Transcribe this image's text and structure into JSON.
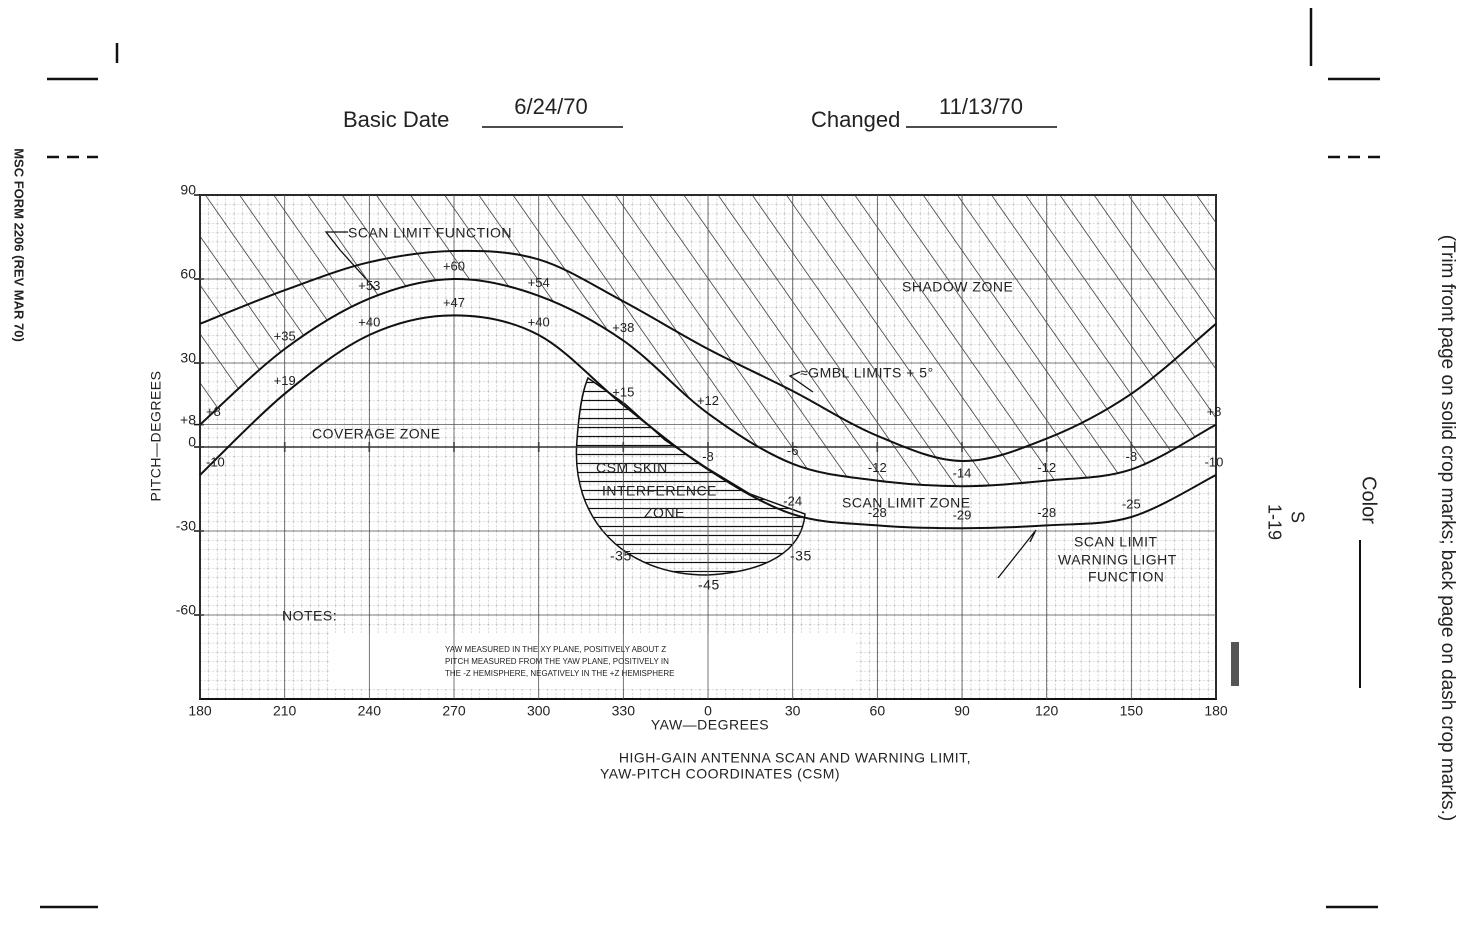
{
  "header": {
    "basic_date_label": "Basic Date",
    "basic_date": "6/24/70",
    "changed_label": "Changed",
    "changed": "11/13/70"
  },
  "margin": {
    "form": "MSC FORM 2206 (REV MAR 70)",
    "trim_note": "(Trim front page on solid crop marks; back page on dash crop marks.)",
    "color_label": "Color",
    "page_number": [
      "S",
      "1-19"
    ]
  },
  "chart_data": {
    "type": "line",
    "title": [
      "HIGH-GAIN ANTENNA SCAN AND WARNING LIMIT,",
      "YAW-PITCH COORDINATES (CSM)"
    ],
    "xlabel": "YAW—DEGREES",
    "ylabel": "PITCH—DEGREES",
    "x": [
      180,
      210,
      240,
      270,
      300,
      330,
      360,
      390,
      420,
      450,
      480,
      510,
      540
    ],
    "xlim": [
      180,
      540
    ],
    "xticks": [
      180,
      210,
      240,
      270,
      300,
      330,
      {
        "value": 360,
        "label": "0"
      },
      {
        "value": 390,
        "label": "30"
      },
      {
        "value": 420,
        "label": "60"
      },
      {
        "value": 450,
        "label": "90"
      },
      {
        "value": 480,
        "label": "120"
      },
      {
        "value": 510,
        "label": "150"
      },
      {
        "value": 540,
        "label": "180"
      }
    ],
    "ylim": [
      -90,
      90
    ],
    "yticks": [
      90,
      60,
      30,
      {
        "value": 8,
        "label": "+8"
      },
      0,
      -30,
      -60
    ],
    "grid": true,
    "series": [
      {
        "color": "#111111",
        "values": [
          44,
          56,
          66,
          70,
          67,
          52,
          35,
          20,
          4,
          -5,
          3,
          19,
          44
        ]
      },
      {
        "color": "#111111",
        "values": [
          8,
          35,
          53,
          60,
          54,
          38,
          12,
          -6,
          -12,
          -14,
          -12,
          -8,
          8
        ],
        "value_labels": [
          "+8",
          "+35",
          "+53",
          "+60",
          "+54",
          "+38",
          "+12",
          "-6",
          "-12",
          "-14",
          "-12",
          "-8",
          "+8"
        ]
      },
      {
        "color": "#111111",
        "values": [
          -10,
          19,
          40,
          47,
          40,
          15,
          -8,
          -24,
          -28,
          -29,
          -28,
          -25,
          -10
        ],
        "value_labels": [
          "-10",
          "+19",
          "+40",
          "+47",
          "+40",
          "+15",
          "-8",
          "-24",
          "-28",
          "-29",
          "-28",
          "-25",
          "-10"
        ]
      }
    ],
    "annotations": [
      "SCAN LIMIT FUNCTION",
      "SHADOW ZONE",
      "≈GMBL LIMITS + 5°",
      "COVERAGE ZONE",
      "CSM SKIN",
      "INTERFERENCE",
      "ZONE",
      "SCAN LIMIT ZONE",
      "SCAN LIMIT",
      "WARNING LIGHT",
      "FUNCTION",
      "-35",
      "-45",
      "-35"
    ],
    "notes": {
      "heading": "NOTES:",
      "lines": [
        "YAW MEASURED IN THE XY PLANE, POSITIVELY ABOUT Z",
        "PITCH MEASURED FROM THE YAW PLANE, POSITIVELY IN",
        "THE -Z HEMISPHERE, NEGATIVELY IN THE +Z HEMISPHERE"
      ]
    }
  }
}
